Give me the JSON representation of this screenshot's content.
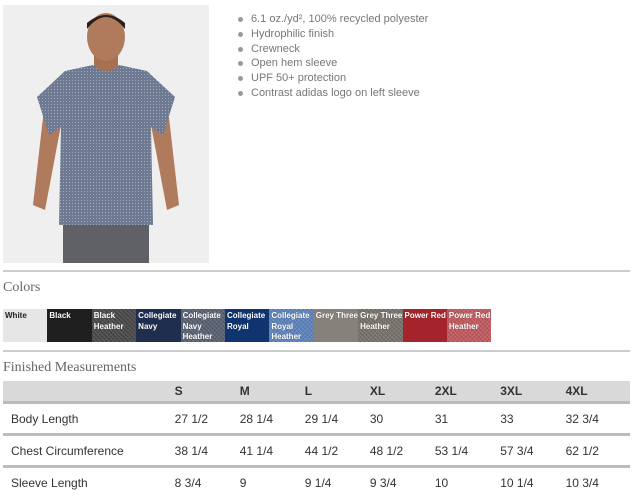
{
  "product": {
    "image_alt": "Model wearing heathered navy t-shirt",
    "features": [
      "6.1 oz./yd², 100% recycled polyester",
      "Hydrophilic finish",
      "Crewneck",
      "Open hem sleeve",
      "UPF 50+ protection",
      "Contrast adidas logo on left sleeve"
    ]
  },
  "colors": {
    "title": "Colors",
    "swatches": [
      {
        "name": "White",
        "color": "#e6e6e6",
        "heather": false,
        "light": true
      },
      {
        "name": "Black",
        "color": "#1f1f1f",
        "heather": false
      },
      {
        "name": "Black Heather",
        "color": "#4a4a4a",
        "heather": true
      },
      {
        "name": "Collegiate Navy",
        "color": "#1f2e4e",
        "heather": false
      },
      {
        "name": "Collegiate Navy Heather",
        "color": "#5a6272",
        "heather": true
      },
      {
        "name": "Collegiate Royal",
        "color": "#10346f",
        "heather": false
      },
      {
        "name": "Collegiate Royal Heather",
        "color": "#5e84bd",
        "heather": true
      },
      {
        "name": "Grey Three",
        "color": "#86817b",
        "heather": false
      },
      {
        "name": "Grey Three Heather",
        "color": "#77736c",
        "heather": true
      },
      {
        "name": "Power Red",
        "color": "#a5232b",
        "heather": false
      },
      {
        "name": "Power Red Heather",
        "color": "#c25a5e",
        "heather": true
      }
    ]
  },
  "measurements": {
    "title": "Finished Measurements",
    "sizes": [
      "S",
      "M",
      "L",
      "XL",
      "2XL",
      "3XL",
      "4XL"
    ],
    "rows": [
      {
        "label": "Body Length",
        "values": [
          "27 1/2",
          "28 1/4",
          "29 1/4",
          "30",
          "31",
          "33",
          "32 3/4"
        ]
      },
      {
        "label": "Chest Circumference",
        "values": [
          "38 1/4",
          "41 1/4",
          "44 1/2",
          "48 1/2",
          "53 1/4",
          "57 3/4",
          "62 1/2"
        ]
      },
      {
        "label": "Sleeve Length",
        "values": [
          "8 3/4",
          "9",
          "9 1/4",
          "9 3/4",
          "10",
          "10 1/4",
          "10 3/4"
        ]
      }
    ]
  }
}
